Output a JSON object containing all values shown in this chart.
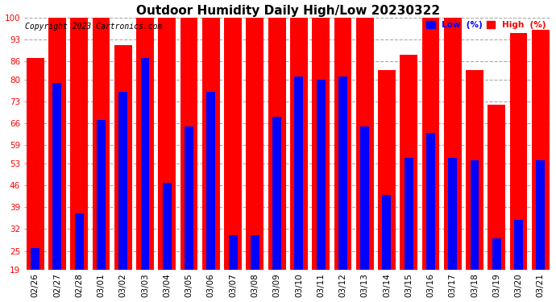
{
  "title": "Outdoor Humidity Daily High/Low 20230322",
  "copyright": "Copyright 2023 Cartronics.com",
  "legend_low_label": "Low  (%)",
  "legend_high_label": "High  (%)",
  "dates": [
    "02/26",
    "02/27",
    "02/28",
    "03/01",
    "03/02",
    "03/03",
    "03/04",
    "03/05",
    "03/06",
    "03/07",
    "03/08",
    "03/09",
    "03/10",
    "03/11",
    "03/12",
    "03/13",
    "03/14",
    "03/15",
    "03/16",
    "03/17",
    "03/18",
    "03/19",
    "03/20",
    "03/21"
  ],
  "high": [
    87,
    100,
    100,
    100,
    91,
    100,
    100,
    100,
    100,
    100,
    100,
    100,
    100,
    100,
    100,
    100,
    83,
    88,
    100,
    100,
    83,
    72,
    95,
    96
  ],
  "low": [
    26,
    79,
    37,
    67,
    76,
    87,
    47,
    65,
    76,
    30,
    30,
    68,
    81,
    80,
    81,
    65,
    43,
    55,
    63,
    55,
    54,
    29,
    35,
    54
  ],
  "ylim_min": 19,
  "ylim_max": 100,
  "yticks": [
    19,
    25,
    32,
    39,
    46,
    53,
    59,
    66,
    73,
    80,
    86,
    93,
    100
  ],
  "bar_width": 0.8,
  "high_color": "#ff0000",
  "low_color": "#0000ff",
  "bg_color": "#ffffff",
  "grid_color": "#aaaaaa",
  "title_fontsize": 11,
  "tick_fontsize": 7.5,
  "copyright_fontsize": 7
}
